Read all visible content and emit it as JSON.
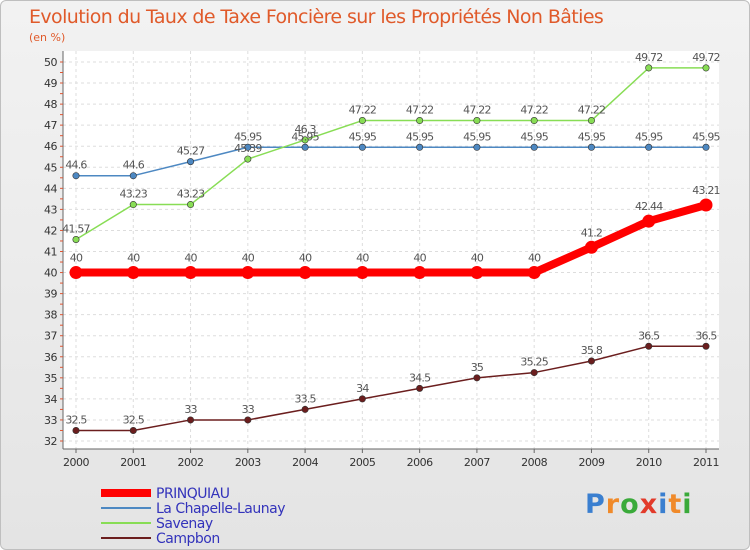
{
  "chart_data": {
    "type": "line",
    "title": "Evolution du Taux de Taxe Foncière sur les Propriétés Non Bâties",
    "ylabel": "(en %)",
    "xlabel": "",
    "ylim": [
      32,
      50
    ],
    "yticks": [
      "32",
      "33",
      "34",
      "35",
      "36",
      "37",
      "38",
      "39",
      "40",
      "41",
      "42",
      "43",
      "44",
      "45",
      "46",
      "47",
      "48",
      "49",
      "50"
    ],
    "categories": [
      "2000",
      "2001",
      "2002",
      "2003",
      "2004",
      "2005",
      "2006",
      "2007",
      "2008",
      "2009",
      "2010",
      "2011"
    ],
    "grid": true,
    "series": [
      {
        "name": "PRINQUIAU",
        "color": "#ff0000",
        "values": [
          40,
          40,
          40,
          40,
          40,
          40,
          40,
          40,
          40,
          41.2,
          42.44,
          43.21
        ],
        "labels": [
          "40",
          "40",
          "40",
          "40",
          "40",
          "40",
          "40",
          "40",
          "40",
          "41.2",
          "42.44",
          "43.21"
        ]
      },
      {
        "name": "La Chapelle-Launay",
        "color": "#4d88c2",
        "values": [
          44.6,
          44.6,
          45.27,
          45.95,
          45.95,
          45.95,
          45.95,
          45.95,
          45.95,
          45.95,
          45.95,
          45.95
        ],
        "labels": [
          "44.6",
          "44.6",
          "45.27",
          "45.95",
          "45.95",
          "45.95",
          "45.95",
          "45.95",
          "45.95",
          "45.95",
          "45.95",
          "45.95"
        ]
      },
      {
        "name": "Savenay",
        "color": "#88dd55",
        "values": [
          41.57,
          43.23,
          43.23,
          45.39,
          46.3,
          47.22,
          47.22,
          47.22,
          47.22,
          47.22,
          49.72,
          49.72
        ],
        "labels": [
          "41.57",
          "43.23",
          "43.23",
          "45.39",
          "46.3",
          "47.22",
          "47.22",
          "47.22",
          "47.22",
          "47.22",
          "49.72",
          "49.72"
        ]
      },
      {
        "name": "Campbon",
        "color": "#6b1e1e",
        "values": [
          32.5,
          32.5,
          33,
          33,
          33.5,
          34,
          34.5,
          35,
          35.25,
          35.8,
          36.5,
          36.5
        ],
        "labels": [
          "32.5",
          "32.5",
          "33",
          "33",
          "33.5",
          "34",
          "34.5",
          "35",
          "35.25",
          "35.8",
          "36.5",
          "36.5"
        ]
      }
    ]
  },
  "logo": {
    "text": "Proxiti",
    "letters": [
      "P",
      "r",
      "o",
      "x",
      "i",
      "t",
      "i"
    ],
    "colors": [
      "#3a7fd0",
      "#f08a2a",
      "#3aaa3a",
      "#e23a2a",
      "#3a7fd0",
      "#f08a2a",
      "#3aaa3a"
    ]
  }
}
